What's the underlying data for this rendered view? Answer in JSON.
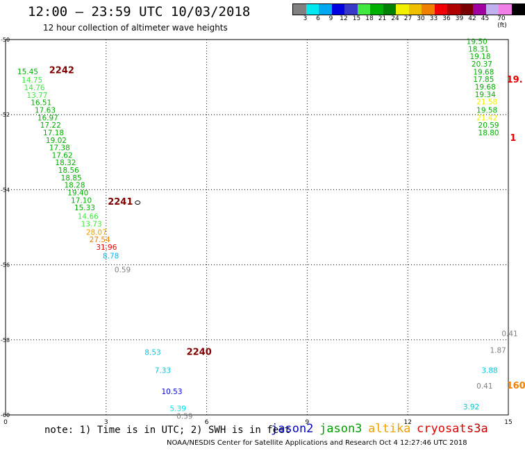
{
  "header": {
    "title": "12:00 — 23:59 UTC 10/03/2018",
    "subtitle": "12 hour collection of altimeter wave heights"
  },
  "legend": {
    "colors": [
      "#808080",
      "#00e8f0",
      "#00a8f0",
      "#0000e0",
      "#3838c8",
      "#40e840",
      "#00b000",
      "#008000",
      "#f0f000",
      "#f0c000",
      "#f08000",
      "#f00000",
      "#b00000",
      "#780000",
      "#a000a0",
      "#c0b0f0",
      "#f080e8",
      "#000000"
    ],
    "labels": [
      "3",
      "6",
      "9",
      "12",
      "15",
      "18",
      "21",
      "24",
      "27",
      "30",
      "33",
      "36",
      "39",
      "42",
      "45",
      "70 (ft)"
    ]
  },
  "note": "note: 1) Time is in UTC; 2) SWH is in feet",
  "satellites": [
    {
      "name": "jason2",
      "color": "#0000c0"
    },
    {
      "name": "jason3",
      "color": "#00a000"
    },
    {
      "name": "altika",
      "color": "#f0a000"
    },
    {
      "name": "cryosat",
      "color": "#e00000"
    },
    {
      "name": "s3a",
      "color": "#c00000"
    }
  ],
  "footer": "NOAA/NESDIS Center for Satellite Applications and Research    Oct  4 12:27:46 UTC 2018",
  "chart_data": {
    "type": "scatter",
    "x_ticks": [
      "0",
      "3",
      "6",
      "9",
      "12",
      "15"
    ],
    "y_ticks": [
      "-50",
      "-52",
      "-54",
      "-56",
      "-58",
      "-60"
    ],
    "xlim": [
      0,
      15
    ],
    "ylim": [
      -60,
      -50
    ],
    "grid": true,
    "storms": [
      {
        "label": "2242",
        "x": 1.3,
        "y": -50.9,
        "color": "#800000"
      },
      {
        "label": "2241",
        "x": 3.05,
        "y": -54.4,
        "color": "#800000"
      },
      {
        "label": "2240",
        "x": 5.4,
        "y": -58.4,
        "color": "#800000"
      },
      {
        "label": "19.",
        "x": 14.95,
        "y": -51.15,
        "color": "#e00000"
      },
      {
        "label": "1",
        "x": 15.05,
        "y": -52.7,
        "color": "#e00000"
      },
      {
        "label": "160",
        "x": 14.95,
        "y": -59.3,
        "color": "#f08000"
      }
    ],
    "points": [
      {
        "x": 0.35,
        "y": -50.92,
        "v": "15.45",
        "c": "#00b000"
      },
      {
        "x": 0.48,
        "y": -51.15,
        "v": "14.75",
        "c": "#40e840"
      },
      {
        "x": 0.55,
        "y": -51.35,
        "v": "14.76",
        "c": "#40e840"
      },
      {
        "x": 0.63,
        "y": -51.55,
        "v": "13.77",
        "c": "#40e840"
      },
      {
        "x": 0.75,
        "y": -51.75,
        "v": "16.51",
        "c": "#00b000"
      },
      {
        "x": 0.87,
        "y": -51.95,
        "v": "17.63",
        "c": "#00b000"
      },
      {
        "x": 0.95,
        "y": -52.15,
        "v": "16.97",
        "c": "#00b000"
      },
      {
        "x": 1.03,
        "y": -52.35,
        "v": "17.22",
        "c": "#00b000"
      },
      {
        "x": 1.12,
        "y": -52.55,
        "v": "17.18",
        "c": "#00b000"
      },
      {
        "x": 1.2,
        "y": -52.75,
        "v": "19.02",
        "c": "#00b000"
      },
      {
        "x": 1.3,
        "y": -52.95,
        "v": "17.38",
        "c": "#00b000"
      },
      {
        "x": 1.38,
        "y": -53.15,
        "v": "17.62",
        "c": "#00b000"
      },
      {
        "x": 1.48,
        "y": -53.35,
        "v": "18.32",
        "c": "#00b000"
      },
      {
        "x": 1.57,
        "y": -53.55,
        "v": "18.56",
        "c": "#00b000"
      },
      {
        "x": 1.65,
        "y": -53.75,
        "v": "18.85",
        "c": "#00b000"
      },
      {
        "x": 1.75,
        "y": -53.95,
        "v": "18.28",
        "c": "#00b000"
      },
      {
        "x": 1.85,
        "y": -54.15,
        "v": "19.40",
        "c": "#00b000"
      },
      {
        "x": 1.95,
        "y": -54.35,
        "v": "17.10",
        "c": "#00b000"
      },
      {
        "x": 2.05,
        "y": -54.55,
        "v": "15.33",
        "c": "#00b000"
      },
      {
        "x": 2.15,
        "y": -54.78,
        "v": "14.66",
        "c": "#40e840"
      },
      {
        "x": 2.25,
        "y": -54.98,
        "v": "13.73",
        "c": "#40e840"
      },
      {
        "x": 2.4,
        "y": -55.2,
        "v": "28.07",
        "c": "#f0a000"
      },
      {
        "x": 2.5,
        "y": -55.4,
        "v": "27.54",
        "c": "#f08000"
      },
      {
        "x": 2.7,
        "y": -55.6,
        "v": "31.96",
        "c": "#f00000"
      },
      {
        "x": 2.9,
        "y": -55.83,
        "v": "8.78",
        "c": "#00b8f0"
      },
      {
        "x": 3.25,
        "y": -56.2,
        "v": "0.59",
        "c": "#808080"
      },
      {
        "x": 4.15,
        "y": -58.4,
        "v": "8.53",
        "c": "#00c8e0"
      },
      {
        "x": 4.45,
        "y": -58.88,
        "v": "7.33",
        "c": "#00c8e0"
      },
      {
        "x": 4.65,
        "y": -59.45,
        "v": "10.53",
        "c": "#0000e0"
      },
      {
        "x": 4.9,
        "y": -59.9,
        "v": "5.39",
        "c": "#00e0f0"
      },
      {
        "x": 5.1,
        "y": -60.1,
        "v": "0.59",
        "c": "#808080"
      },
      {
        "x": 13.75,
        "y": -50.12,
        "v": "19.50",
        "c": "#00b000"
      },
      {
        "x": 13.8,
        "y": -50.32,
        "v": "18.31",
        "c": "#00b000"
      },
      {
        "x": 13.85,
        "y": -50.52,
        "v": "19.18",
        "c": "#00b000"
      },
      {
        "x": 13.9,
        "y": -50.72,
        "v": "20.37",
        "c": "#00b000"
      },
      {
        "x": 13.95,
        "y": -50.93,
        "v": "19.68",
        "c": "#00b000"
      },
      {
        "x": 13.95,
        "y": -51.13,
        "v": "17.85",
        "c": "#00b000"
      },
      {
        "x": 14.0,
        "y": -51.33,
        "v": "19.68",
        "c": "#00b000"
      },
      {
        "x": 14.0,
        "y": -51.53,
        "v": "19.34",
        "c": "#00b000"
      },
      {
        "x": 14.05,
        "y": -51.73,
        "v": "21.58",
        "c": "#f0f000"
      },
      {
        "x": 14.05,
        "y": -51.95,
        "v": "19.58",
        "c": "#00b000"
      },
      {
        "x": 14.05,
        "y": -52.15,
        "v": "21.42",
        "c": "#f0f000"
      },
      {
        "x": 14.1,
        "y": -52.35,
        "v": "20.59",
        "c": "#00b000"
      },
      {
        "x": 14.1,
        "y": -52.55,
        "v": "18.80",
        "c": "#00b000"
      },
      {
        "x": 14.8,
        "y": -57.9,
        "v": "0.41",
        "c": "#808080"
      },
      {
        "x": 14.45,
        "y": -58.35,
        "v": "1.87",
        "c": "#808080"
      },
      {
        "x": 14.2,
        "y": -58.88,
        "v": "3.88",
        "c": "#00c8e0"
      },
      {
        "x": 14.05,
        "y": -59.3,
        "v": "0.41",
        "c": "#808080"
      },
      {
        "x": 13.65,
        "y": -59.85,
        "v": "3.92",
        "c": "#00c8e0"
      }
    ]
  }
}
